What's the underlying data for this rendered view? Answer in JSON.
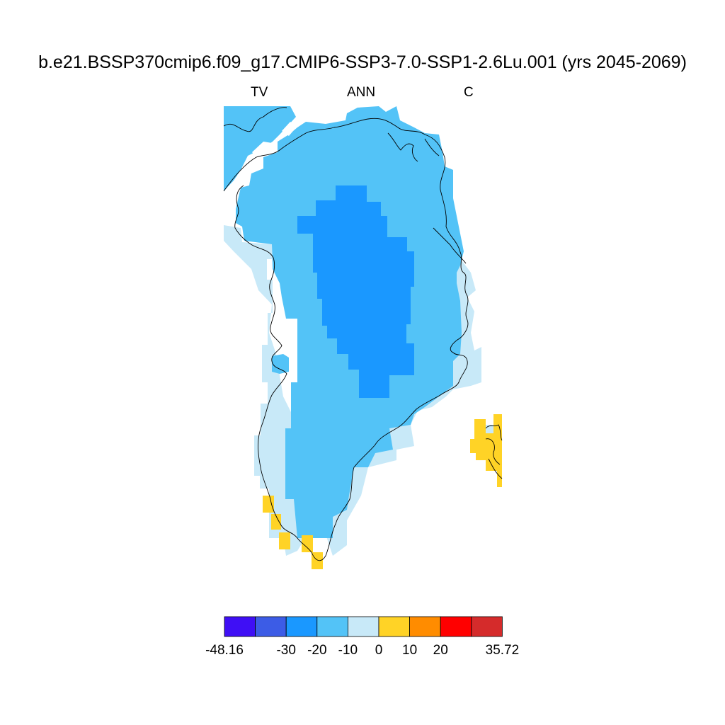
{
  "title": "b.e21.BSSP370cmip6.f09_g17.CMIP6-SSP3-7.0-SSP1-2.6Lu.001 (yrs 2045-2069)",
  "subtitle_left": "TV",
  "subtitle_center": "ANN",
  "subtitle_right": "C",
  "colorbar": {
    "colors": [
      "#3f0ff5",
      "#3c5ce6",
      "#1a98ff",
      "#53c3f7",
      "#c8e9f8",
      "#ffd326",
      "#ff8c00",
      "#ff0000",
      "#d52b2b"
    ],
    "tick_labels": [
      "-48.16",
      "-30",
      "-20",
      "-10",
      "0",
      "10",
      "20",
      "35.72"
    ]
  },
  "chart_data": {
    "type": "heatmap",
    "region": "Greenland",
    "variable": "TV",
    "period": "ANN",
    "units": "C",
    "levels": [
      -48.16,
      -30,
      -20,
      -10,
      0,
      10,
      20,
      35.72
    ],
    "value_classes_present": [
      "-30 to -20",
      "-20 to -10",
      "-10 to 0",
      "0 to 10"
    ]
  }
}
